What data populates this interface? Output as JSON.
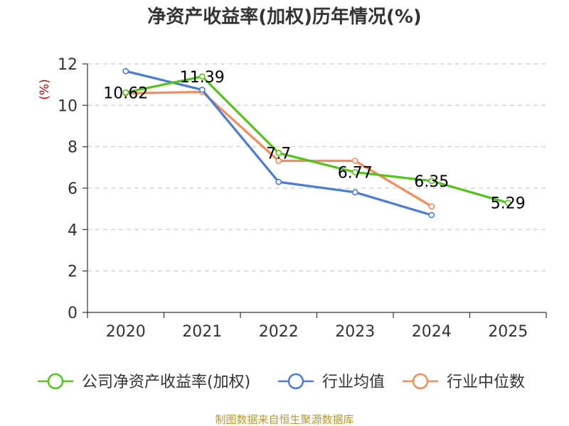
{
  "chart_data": {
    "type": "line",
    "title": "净资产收益率(加权)历年情况(%)",
    "ylabel": "(%)",
    "xlabel": "",
    "ylim": [
      0,
      12
    ],
    "yticks": [
      0,
      2,
      4,
      6,
      8,
      10,
      12
    ],
    "categories": [
      "2020",
      "2021",
      "2022",
      "2023",
      "2024",
      "2025"
    ],
    "grid": true,
    "legend_position": "bottom",
    "series": [
      {
        "name": "公司净资产收益率(加权)",
        "color": "#52c41a",
        "values": [
          10.62,
          11.39,
          7.7,
          6.77,
          6.35,
          5.29
        ],
        "labels": [
          "10.62",
          "11.39",
          "7.7",
          "6.77",
          "6.35",
          "5.29"
        ]
      },
      {
        "name": "行业均值",
        "color": "#4a7bd8",
        "values": [
          11.65,
          10.75,
          6.3,
          5.8,
          4.7,
          null
        ]
      },
      {
        "name": "行业中位数",
        "color": "#f78a5a",
        "values": [
          10.58,
          10.65,
          7.32,
          7.32,
          5.12,
          null
        ]
      }
    ],
    "source": "制图数据来自恒生聚源数据库",
    "colors": {
      "axis": "#333333",
      "grid": "#cccccc",
      "unit": "#cc0000",
      "source": "#b8962e"
    }
  }
}
